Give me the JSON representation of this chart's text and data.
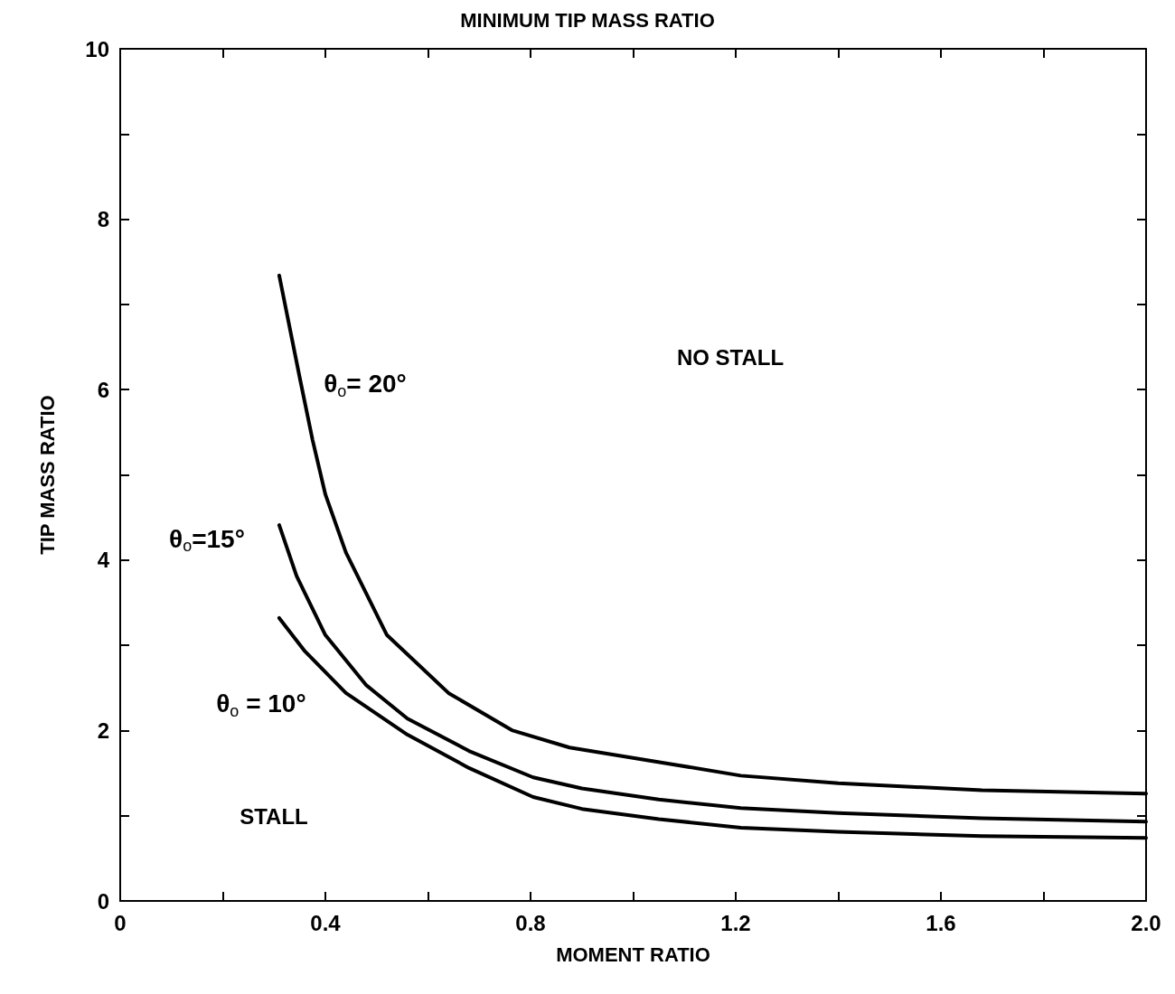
{
  "chart_data": {
    "type": "line",
    "title": "MINIMUM TIP MASS RATIO",
    "xlabel": "MOMENT RATIO",
    "ylabel": "TIP MASS RATIO",
    "xlim": [
      0,
      2
    ],
    "ylim": [
      0,
      10
    ],
    "xticks": [
      0,
      {
        "value": 0.2,
        "label": null
      },
      0.4,
      {
        "value": 0.6,
        "label": null
      },
      0.8,
      {
        "value": 1,
        "label": null
      },
      1.2,
      {
        "value": 1.4,
        "label": null
      },
      1.6,
      {
        "value": 1.8,
        "label": null
      },
      {
        "value": 2,
        "label": "2.0"
      }
    ],
    "yticks": [
      0,
      {
        "value": 1,
        "label": null
      },
      2,
      {
        "value": 3,
        "label": null
      },
      4,
      {
        "value": 5,
        "label": null
      },
      6,
      {
        "value": 7,
        "label": null
      },
      8,
      {
        "value": 9,
        "label": null
      },
      10
    ],
    "grid": false,
    "marker": "none",
    "line_style": "solid",
    "series": [
      {
        "name": "θ$_{o}$= 20°",
        "color": "#000000",
        "x": [
          0.31,
          0.35,
          0.375,
          0.4,
          0.44,
          0.52,
          0.64,
          0.765,
          0.876,
          1.07,
          1.21,
          1.4,
          1.68,
          2.0
        ],
        "values": [
          7.34,
          6.14,
          5.41,
          4.77,
          4.09,
          3.12,
          2.44,
          2.0,
          1.8,
          1.61,
          1.47,
          1.38,
          1.3,
          1.26
        ]
      },
      {
        "name": "θ$_{o}$=15°",
        "color": "#000000",
        "x": [
          0.31,
          0.344,
          0.4,
          0.48,
          0.56,
          0.68,
          0.805,
          0.9,
          1.05,
          1.21,
          1.4,
          1.68,
          2.0
        ],
        "values": [
          4.41,
          3.81,
          3.12,
          2.53,
          2.14,
          1.76,
          1.45,
          1.32,
          1.19,
          1.09,
          1.03,
          0.97,
          0.93
        ]
      },
      {
        "name": "θ$_{o}$ = 10°",
        "color": "#000000",
        "x": [
          0.31,
          0.36,
          0.44,
          0.56,
          0.68,
          0.805,
          0.9,
          1.05,
          1.21,
          1.4,
          1.68,
          2.0
        ],
        "values": [
          3.32,
          2.93,
          2.44,
          1.95,
          1.56,
          1.22,
          1.08,
          0.96,
          0.86,
          0.81,
          0.76,
          0.74
        ]
      }
    ],
    "annotations": [
      "NO STALL",
      "STALL"
    ]
  }
}
